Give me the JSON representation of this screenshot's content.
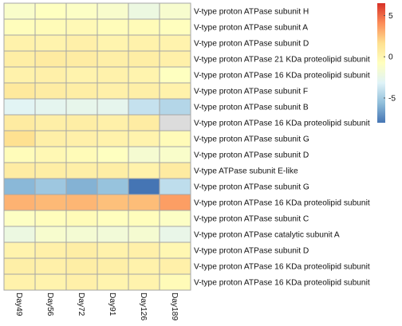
{
  "chart_data": {
    "type": "heatmap",
    "title": "",
    "xlabel": "",
    "ylabel": "",
    "columns": [
      "Day49",
      "Day56",
      "Day72",
      "Day91",
      "Day126",
      "Day189"
    ],
    "rows": [
      "V-type proton ATPase subunit H",
      "V-type proton ATPase subunit A",
      "V-type proton ATPase subunit D",
      "V-type proton ATPase 21 KDa proteolipid subunit",
      "V-type proton ATPase 16 KDa proteolipid subunit",
      "V-type proton ATPase subunit F",
      "V-type proton ATPase subunit B",
      "V-type proton ATPase 16 KDa proteolipid subunit",
      "V-type proton ATPase subunit G",
      "V-type proton ATPase subunit D",
      "V-type ATPase subunit E-like",
      "V-type proton ATPase subunit G",
      "V-type proton ATPase 16 KDa proteolipid subunit",
      "V-type proton ATPase subunit C",
      "V-type proton ATPase catalytic subunit A",
      "V-type proton ATPase subunit D",
      "V-type proton ATPase 16 KDa proteolipid subunit",
      "V-type proton ATPase 16 KDa proteolipid subunit"
    ],
    "values": [
      [
        -1.2,
        -0.8,
        -1.0,
        -1.3,
        -2.2,
        -1.4
      ],
      [
        -0.6,
        -0.4,
        -0.3,
        -0.5,
        -0.4,
        -0.7
      ],
      [
        0.3,
        0.2,
        0.4,
        0.1,
        0.3,
        0.2
      ],
      [
        0.6,
        0.8,
        0.7,
        0.5,
        0.6,
        0.4
      ],
      [
        0.3,
        0.4,
        0.2,
        0.3,
        0.1,
        -0.8
      ],
      [
        1.0,
        0.7,
        0.6,
        0.4,
        0.5,
        0.3
      ],
      [
        -3.0,
        -2.8,
        -2.6,
        -2.7,
        -4.0,
        -4.5
      ],
      [
        0.8,
        0.5,
        0.6,
        0.4,
        0.7,
        null
      ],
      [
        1.6,
        0.5,
        0.4,
        0.3,
        0.2,
        -0.4
      ],
      [
        -0.5,
        -0.2,
        -0.4,
        -0.8,
        -1.5,
        -1.2
      ],
      [
        0.7,
        0.6,
        0.5,
        0.6,
        0.3,
        0.8
      ],
      [
        -5.8,
        -5.2,
        -6.0,
        -5.4,
        -8.0,
        -4.2
      ],
      [
        3.0,
        2.8,
        2.9,
        2.6,
        2.7,
        3.6
      ],
      [
        -0.9,
        -0.6,
        -0.4,
        -0.7,
        -0.6,
        -1.0
      ],
      [
        -2.2,
        -1.4,
        -1.6,
        -1.8,
        -1.5,
        -2.5
      ],
      [
        0.2,
        0.4,
        0.6,
        0.3,
        0.4,
        -0.1
      ],
      [
        0.5,
        0.4,
        0.6,
        0.5,
        0.3,
        0.4
      ],
      [
        0.3,
        0.2,
        0.4,
        0.1,
        0.2,
        -0.4
      ]
    ],
    "missing_color": "#dcdcdc",
    "legend": {
      "position": "right",
      "ticks": [
        5,
        0,
        -5
      ],
      "range": [
        -8,
        6.5
      ],
      "colors": [
        "#4575b4",
        "#91bfdb",
        "#e0f3f8",
        "#ffffbf",
        "#fee090",
        "#fc8d59",
        "#d73027"
      ]
    },
    "grid": true
  }
}
